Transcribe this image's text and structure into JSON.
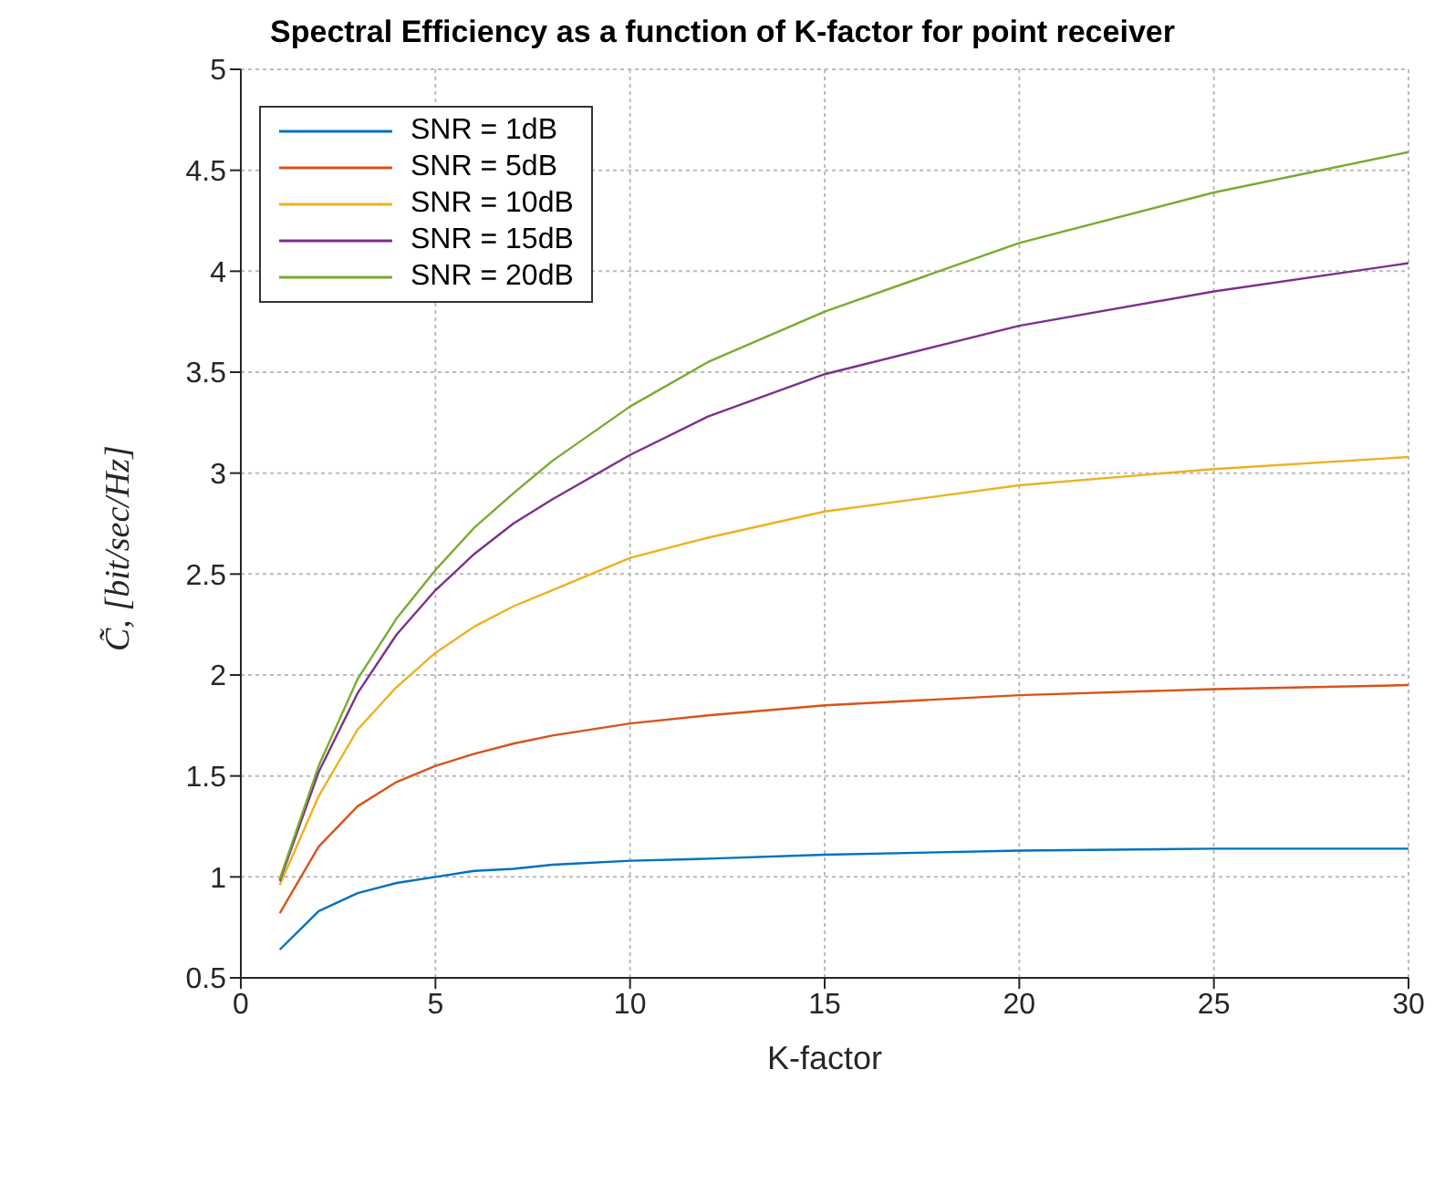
{
  "chart_data": {
    "type": "line",
    "title": "Spectral Efficiency as a function of K-factor for point receiver",
    "xlabel": "K-factor",
    "ylabel": "C̃, [bit/sec/Hz]",
    "x": [
      1,
      2,
      3,
      4,
      5,
      6,
      7,
      8,
      10,
      12,
      15,
      20,
      25,
      30
    ],
    "series": [
      {
        "name": "SNR = 1dB",
        "color": "#0072bd",
        "values": [
          0.64,
          0.83,
          0.92,
          0.97,
          1.0,
          1.03,
          1.04,
          1.06,
          1.08,
          1.09,
          1.11,
          1.13,
          1.14,
          1.14
        ]
      },
      {
        "name": "SNR = 5dB",
        "color": "#d95319",
        "values": [
          0.82,
          1.15,
          1.35,
          1.47,
          1.55,
          1.61,
          1.66,
          1.7,
          1.76,
          1.8,
          1.85,
          1.9,
          1.93,
          1.95
        ]
      },
      {
        "name": "SNR = 10dB",
        "color": "#edb120",
        "values": [
          0.96,
          1.4,
          1.73,
          1.94,
          2.11,
          2.24,
          2.34,
          2.42,
          2.58,
          2.68,
          2.81,
          2.94,
          3.02,
          3.08
        ]
      },
      {
        "name": "SNR = 15dB",
        "color": "#7e2f8e",
        "values": [
          0.98,
          1.52,
          1.91,
          2.2,
          2.42,
          2.6,
          2.75,
          2.87,
          3.09,
          3.28,
          3.49,
          3.73,
          3.9,
          4.04
        ]
      },
      {
        "name": "SNR = 20dB",
        "color": "#77ac30",
        "values": [
          0.99,
          1.55,
          1.98,
          2.28,
          2.52,
          2.73,
          2.9,
          3.06,
          3.33,
          3.55,
          3.8,
          4.14,
          4.39,
          4.59
        ]
      }
    ],
    "xlim": [
      0,
      30
    ],
    "xticks": [
      0,
      5,
      10,
      15,
      20,
      25,
      30
    ],
    "ylim": [
      0.5,
      5
    ],
    "yticks": [
      0.5,
      1,
      1.5,
      2,
      2.5,
      3,
      3.5,
      4,
      4.5,
      5
    ],
    "grid": true,
    "legend": "top left",
    "marker": "none",
    "line_style": "solid"
  }
}
